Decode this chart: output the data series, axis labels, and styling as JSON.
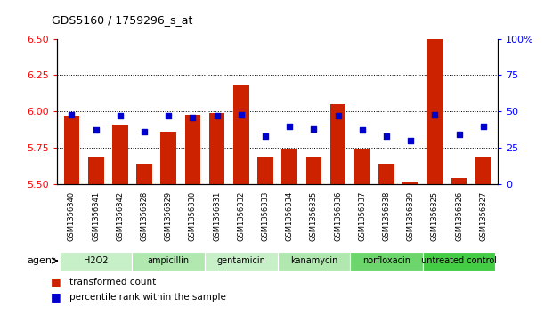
{
  "title": "GDS5160 / 1759296_s_at",
  "samples": [
    "GSM1356340",
    "GSM1356341",
    "GSM1356342",
    "GSM1356328",
    "GSM1356329",
    "GSM1356330",
    "GSM1356331",
    "GSM1356332",
    "GSM1356333",
    "GSM1356334",
    "GSM1356335",
    "GSM1356336",
    "GSM1356337",
    "GSM1356338",
    "GSM1356339",
    "GSM1356325",
    "GSM1356326",
    "GSM1356327"
  ],
  "bar_values": [
    5.97,
    5.69,
    5.91,
    5.64,
    5.86,
    5.98,
    5.99,
    6.18,
    5.69,
    5.74,
    5.69,
    6.05,
    5.74,
    5.64,
    5.52,
    6.5,
    5.54,
    5.69
  ],
  "blue_values": [
    48,
    37,
    47,
    36,
    47,
    46,
    47,
    48,
    33,
    40,
    38,
    47,
    37,
    33,
    30,
    48,
    34,
    40
  ],
  "groups": [
    {
      "name": "H2O2",
      "start": 0,
      "end": 3,
      "color": "#c8f0c8"
    },
    {
      "name": "ampicillin",
      "start": 3,
      "end": 6,
      "color": "#b0e8b0"
    },
    {
      "name": "gentamicin",
      "start": 6,
      "end": 9,
      "color": "#c8f0c8"
    },
    {
      "name": "kanamycin",
      "start": 9,
      "end": 12,
      "color": "#b0e8b0"
    },
    {
      "name": "norfloxacin",
      "start": 12,
      "end": 15,
      "color": "#6cd66c"
    },
    {
      "name": "untreated control",
      "start": 15,
      "end": 18,
      "color": "#44cc44"
    }
  ],
  "ylim_left": [
    5.5,
    6.5
  ],
  "ylim_right": [
    0,
    100
  ],
  "yticks_left": [
    5.5,
    5.75,
    6.0,
    6.25,
    6.5
  ],
  "yticks_right": [
    0,
    25,
    50,
    75,
    100
  ],
  "bar_color": "#cc2200",
  "dot_color": "#0000cc",
  "bar_bottom": 5.5,
  "right_tick_labels": [
    "0",
    "25",
    "50",
    "75",
    "100%"
  ],
  "grid_lines": [
    5.75,
    6.0,
    6.25
  ],
  "agent_label": "agent"
}
